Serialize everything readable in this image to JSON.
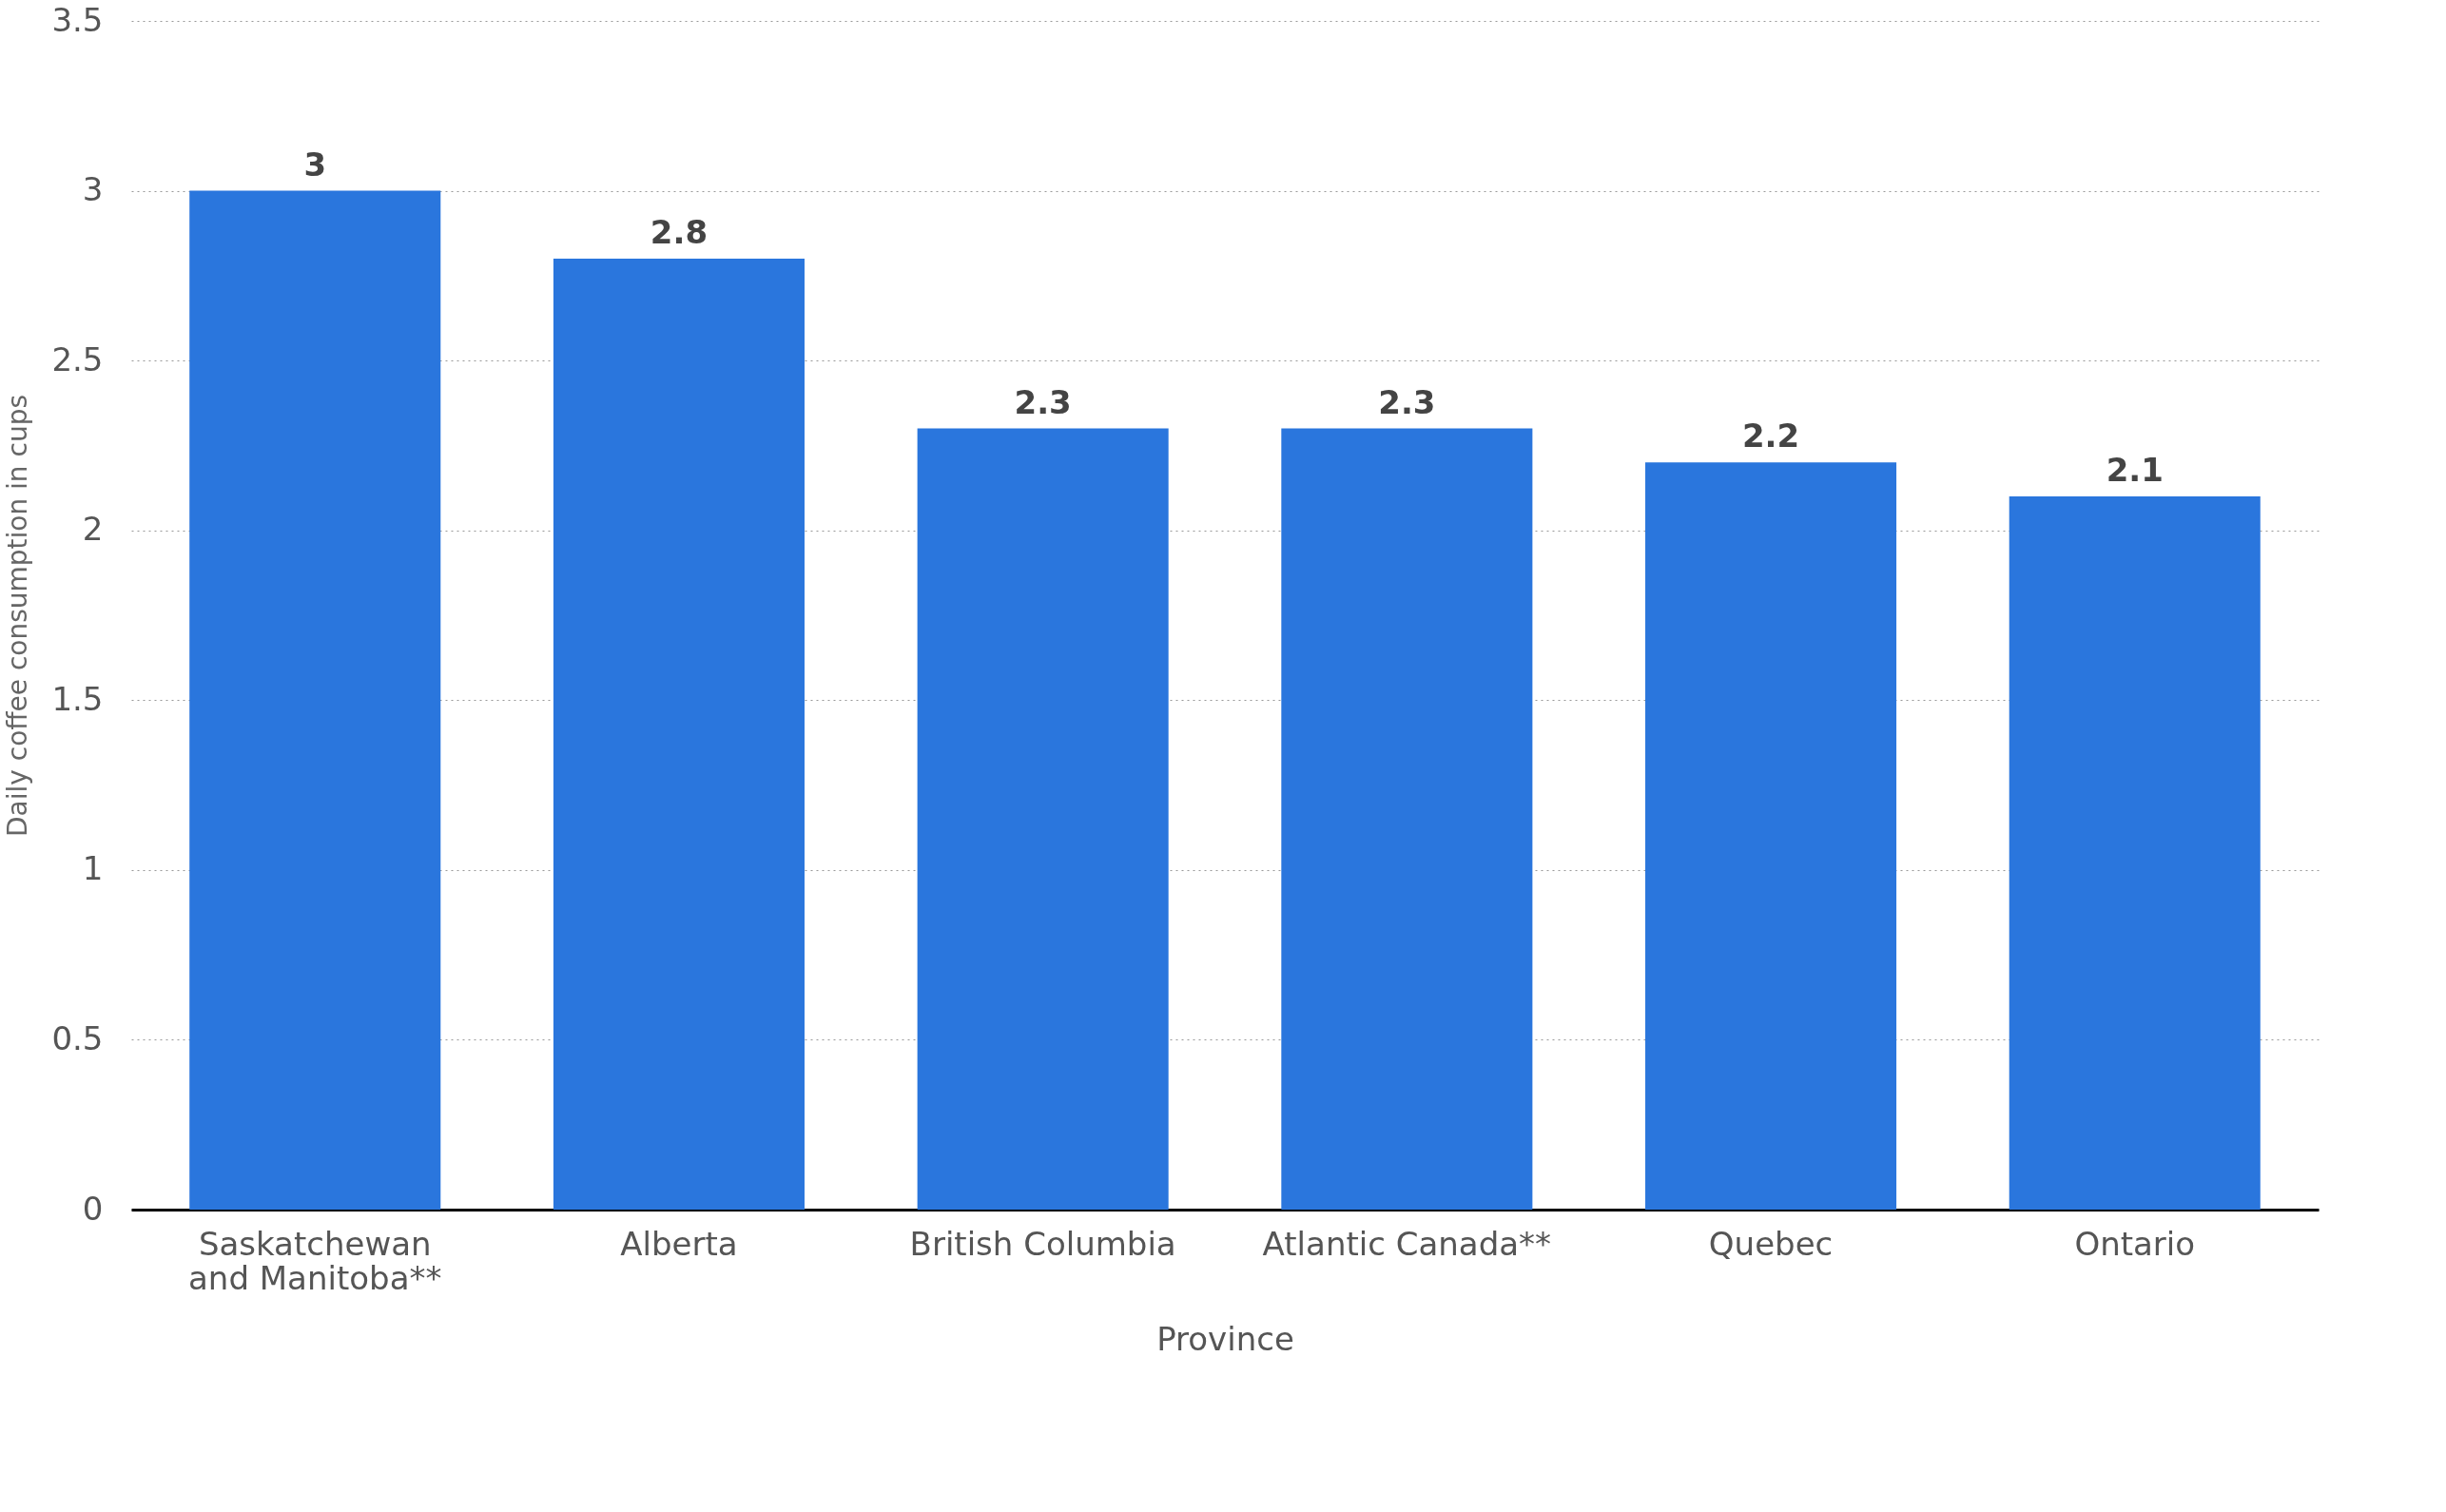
{
  "chart_data": {
    "type": "bar",
    "xlabel": "Province",
    "ylabel": "Daily coffee consumption in cups",
    "categories": [
      "Saskatchewan and Manitoba**",
      "Alberta",
      "British Columbia",
      "Atlantic Canada**",
      "Quebec",
      "Ontario"
    ],
    "values": [
      3,
      2.8,
      2.3,
      2.3,
      2.2,
      2.1
    ],
    "color": "#2a76dd",
    "ylim": [
      0,
      3.5
    ],
    "yticks": [
      0,
      0.5,
      1,
      1.5,
      2,
      2.5,
      3,
      3.5
    ],
    "grid": "y",
    "data_labels": true
  }
}
